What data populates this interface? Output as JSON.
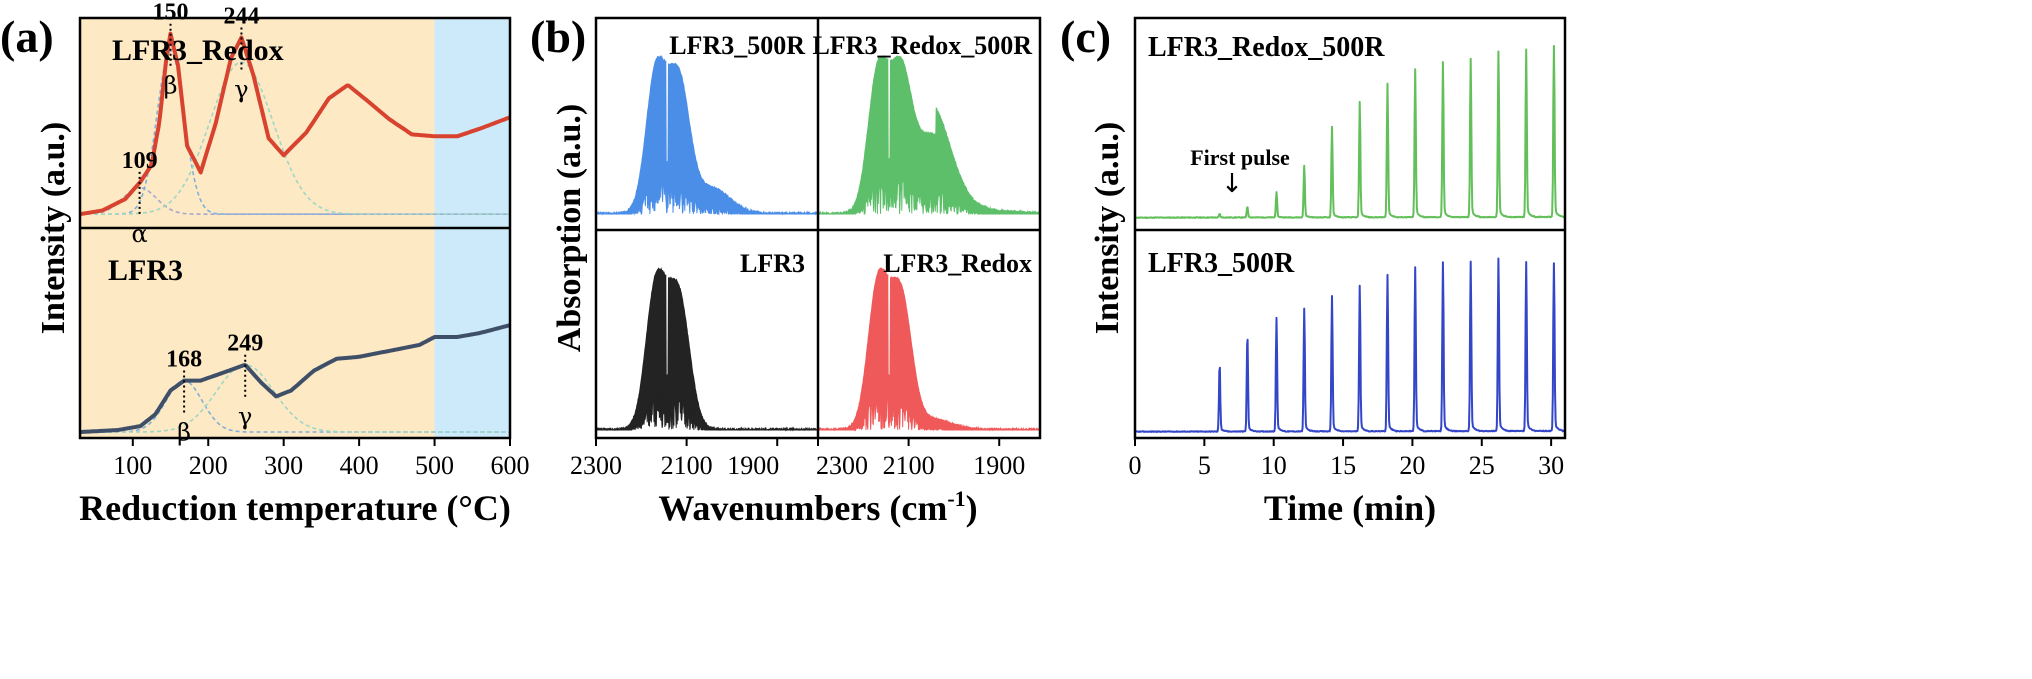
{
  "figure": {
    "background": "#ffffff"
  },
  "chart_data": [
    {
      "type": "line",
      "panel_label": "(a)",
      "xlabel": "Reduction temperature (°C)",
      "ylabel": "Intensity (a.u.)",
      "xlim": [
        30,
        600
      ],
      "xticks": [
        100,
        200,
        300,
        400,
        500,
        600
      ],
      "shaded_regions": [
        {
          "x_range": [
            30,
            500
          ],
          "color": "#fde9c4"
        },
        {
          "x_range": [
            500,
            600
          ],
          "color": "#cdeafb"
        }
      ],
      "subplots": [
        {
          "name": "LFR3_Redox",
          "name_color": "#c62b22",
          "line_color": "#d7432f",
          "x": [
            30,
            60,
            90,
            110,
            125,
            135,
            145,
            150,
            160,
            172,
            190,
            210,
            230,
            244,
            260,
            280,
            300,
            330,
            360,
            385,
            410,
            440,
            470,
            500,
            530,
            560,
            600
          ],
          "values": [
            0.02,
            0.04,
            0.1,
            0.19,
            0.28,
            0.5,
            0.86,
            0.97,
            0.8,
            0.38,
            0.24,
            0.5,
            0.84,
            0.95,
            0.75,
            0.42,
            0.33,
            0.45,
            0.63,
            0.7,
            0.62,
            0.52,
            0.44,
            0.43,
            0.43,
            0.47,
            0.53
          ],
          "peaks": [
            {
              "label": "109",
              "x": 109,
              "y": 0.19,
              "greek": "α"
            },
            {
              "label": "150",
              "x": 150,
              "y": 0.97,
              "greek": "β"
            },
            {
              "label": "244",
              "x": 244,
              "y": 0.95,
              "greek": "γ"
            }
          ],
          "fit_curves": [
            {
              "center": 109,
              "width": 22,
              "height": 0.14,
              "color": "#a7a7cf"
            },
            {
              "center": 150,
              "width": 18,
              "height": 0.86,
              "color": "#7fb0d9"
            },
            {
              "center": 244,
              "width": 42,
              "height": 0.8,
              "color": "#9fd7c7"
            }
          ]
        },
        {
          "name": "LFR3",
          "name_color": "#000000",
          "line_color": "#3f4f68",
          "x": [
            30,
            80,
            110,
            130,
            150,
            168,
            190,
            220,
            249,
            270,
            290,
            310,
            340,
            370,
            400,
            440,
            480,
            500,
            530,
            560,
            600
          ],
          "values": [
            0.02,
            0.03,
            0.05,
            0.11,
            0.23,
            0.28,
            0.28,
            0.32,
            0.36,
            0.27,
            0.2,
            0.23,
            0.33,
            0.39,
            0.4,
            0.43,
            0.46,
            0.5,
            0.5,
            0.52,
            0.56
          ],
          "peaks": [
            {
              "label": "168",
              "x": 168,
              "y": 0.28,
              "greek": "β"
            },
            {
              "label": "249",
              "x": 249,
              "y": 0.36,
              "greek": "γ"
            }
          ],
          "fit_curves": [
            {
              "center": 168,
              "width": 24,
              "height": 0.26,
              "color": "#7fb0d9"
            },
            {
              "center": 249,
              "width": 38,
              "height": 0.34,
              "color": "#9fd7c7"
            }
          ]
        }
      ]
    },
    {
      "type": "line",
      "panel_label": "(b)",
      "xlabel": "Wavenumbers (cm",
      "xlabel_sup": "-1",
      "ylabel": "Absorption (a.u.)",
      "xlim": [
        2300,
        1810
      ],
      "xticks_left": [
        "2300",
        "2100",
        "1900"
      ],
      "xticks_right": [
        "2300",
        "2100",
        "1900"
      ],
      "spectra": [
        {
          "name": "LFR3_500R",
          "color": "#4a8ee8",
          "position": "top-left",
          "shoulder": 0.16
        },
        {
          "name": "LFR3_Redox_500R",
          "color": "#5dbf6a",
          "position": "top-right",
          "shoulder": 0.5
        },
        {
          "name": "LFR3",
          "color": "#232323",
          "position": "bottom-left",
          "shoulder": 0.0
        },
        {
          "name": "LFR3_Redox",
          "color": "#f0595a",
          "position": "bottom-right",
          "shoulder": 0.06
        }
      ]
    },
    {
      "type": "line",
      "panel_label": "(c)",
      "xlabel": "Time (min)",
      "ylabel": "Intensity (a.u.)",
      "xlim": [
        0,
        31
      ],
      "xticks": [
        0,
        5,
        10,
        15,
        20,
        25,
        30
      ],
      "subplots": [
        {
          "name": "LFR3_Redox_500R",
          "line_color": "#63bf5a",
          "annotation": "First pulse",
          "arrow": "↓",
          "pulse_times": [
            6.1,
            8.1,
            10.2,
            12.2,
            14.2,
            16.2,
            18.2,
            20.2,
            22.2,
            24.2,
            26.2,
            28.2,
            30.2
          ],
          "pulse_heights": [
            0.02,
            0.06,
            0.14,
            0.29,
            0.51,
            0.65,
            0.75,
            0.83,
            0.87,
            0.89,
            0.93,
            0.94,
            0.96
          ]
        },
        {
          "name": "LFR3_500R",
          "line_color": "#3446c8",
          "pulse_times": [
            6.1,
            8.1,
            10.2,
            12.2,
            14.2,
            16.2,
            18.2,
            20.2,
            22.2,
            24.2,
            26.2,
            28.2,
            30.2
          ],
          "pulse_heights": [
            0.37,
            0.53,
            0.63,
            0.68,
            0.75,
            0.81,
            0.87,
            0.91,
            0.94,
            0.94,
            0.96,
            0.94,
            0.93
          ]
        }
      ]
    }
  ]
}
